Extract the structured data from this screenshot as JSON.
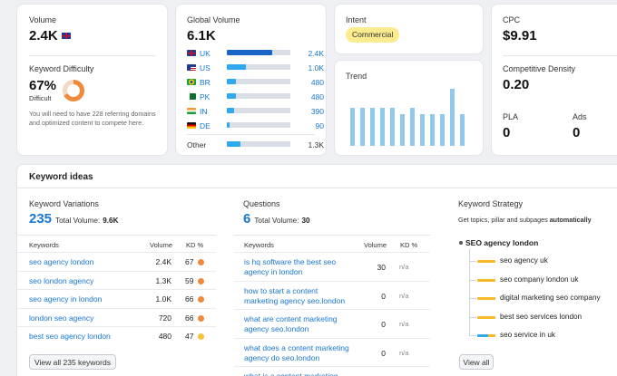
{
  "volume": {
    "label": "Volume",
    "value": "2.4K"
  },
  "difficulty": {
    "label": "Keyword Difficulty",
    "value": "67%",
    "level": "Difficult",
    "percent": 67,
    "description": "You will need to have 228 referring domains and optimized content to compete here.",
    "color": "#f08a3a"
  },
  "global_volume": {
    "label": "Global Volume",
    "value": "6.1K",
    "rows": [
      {
        "code": "UK",
        "value": "2.4K",
        "fill": 0.72,
        "selected": true
      },
      {
        "code": "US",
        "value": "1.0K",
        "fill": 0.3,
        "selected": false
      },
      {
        "code": "BR",
        "value": "480",
        "fill": 0.14,
        "selected": false
      },
      {
        "code": "PK",
        "value": "480",
        "fill": 0.14,
        "selected": false
      },
      {
        "code": "IN",
        "value": "390",
        "fill": 0.12,
        "selected": false
      },
      {
        "code": "DE",
        "value": "90",
        "fill": 0.04,
        "selected": false
      }
    ],
    "other_label": "Other",
    "other_value": "1.3K",
    "other_fill": 0.22
  },
  "intent": {
    "label": "Intent",
    "badge": "Commercial"
  },
  "trend": {
    "label": "Trend",
    "values": [
      0.66,
      0.66,
      0.66,
      0.66,
      0.66,
      0.55,
      0.66,
      0.55,
      0.55,
      0.55,
      0.98,
      0.55
    ]
  },
  "cpc": {
    "label": "CPC",
    "value": "$9.91"
  },
  "competitive_density": {
    "label": "Competitive Density",
    "value": "0.20"
  },
  "pla": {
    "label": "PLA",
    "value": "0"
  },
  "ads": {
    "label": "Ads",
    "value": "0"
  },
  "ideas": {
    "title": "Keyword ideas",
    "variations": {
      "title": "Keyword Variations",
      "count": "235",
      "total_label": "Total Volume:",
      "total_value": "9.6K",
      "columns": [
        "Keywords",
        "Volume",
        "KD %"
      ],
      "rows": [
        {
          "keyword": "seo agency london",
          "volume": "2.4K",
          "kd": "67",
          "kd_color": "#f08a3a"
        },
        {
          "keyword": "seo london agency",
          "volume": "1.3K",
          "kd": "59",
          "kd_color": "#f08a3a"
        },
        {
          "keyword": "seo agency in london",
          "volume": "1.0K",
          "kd": "66",
          "kd_color": "#f08a3a"
        },
        {
          "keyword": "london seo agency",
          "volume": "720",
          "kd": "66",
          "kd_color": "#f08a3a"
        },
        {
          "keyword": "best seo agency london",
          "volume": "480",
          "kd": "47",
          "kd_color": "#f5c23a"
        }
      ],
      "button": "View all 235 keywords"
    },
    "questions": {
      "title": "Questions",
      "count": "6",
      "total_label": "Total Volume:",
      "total_value": "30",
      "columns": [
        "Keywords",
        "Volume",
        "KD %"
      ],
      "rows": [
        {
          "line1": "is hq software the best seo",
          "line2": "agency in london",
          "volume": "30",
          "kd": "n/a"
        },
        {
          "line1": "how to start a content",
          "line2": "marketing agency seo.london",
          "volume": "0",
          "kd": "n/a"
        },
        {
          "line1": "what are content marketing",
          "line2": "agency seo.london",
          "volume": "0",
          "kd": "n/a"
        },
        {
          "line1": "what does a content marketing",
          "line2": "agency do seo.london",
          "volume": "0",
          "kd": "n/a"
        },
        {
          "line1": "what is a content marketing",
          "line2": "",
          "volume": "",
          "kd": ""
        }
      ]
    },
    "strategy": {
      "title": "Keyword Strategy",
      "subtitle_prefix": "Get topics, pillar and subpages ",
      "subtitle_bold": "automatically",
      "root": "SEO agency london",
      "items": [
        {
          "label": "seo agency uk",
          "color": "#f6b928"
        },
        {
          "label": "seo company london uk",
          "color": "#f6b928"
        },
        {
          "label": "digital marketing seo company",
          "color": "#f6b928"
        },
        {
          "label": "best seo services london",
          "color": "#f6b928"
        },
        {
          "label": "seo service in uk",
          "color": "#2ea8ee"
        }
      ],
      "button": "View all"
    }
  }
}
